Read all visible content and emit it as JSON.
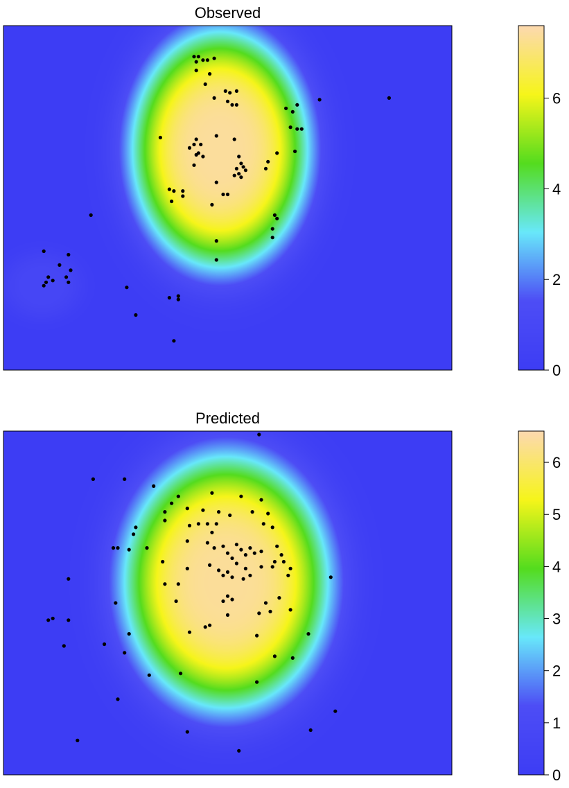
{
  "chart_data": [
    {
      "type": "heatmap",
      "title": "Observed",
      "xlabel": "",
      "ylabel": "",
      "legend": "right",
      "colorbar": {
        "min": 0,
        "max": 7.6,
        "ticks": [
          0,
          2,
          4,
          6
        ],
        "tick_labels": [
          "0",
          "2",
          "4",
          "6"
        ]
      },
      "color_stops": [
        "#3d3df4",
        "#4d4df5",
        "#68e8fa",
        "#54dc1e",
        "#f6f51a",
        "#fcd9b0"
      ],
      "hotspots": [
        {
          "cx": 0.483,
          "cy": 0.64,
          "peak": 7.4,
          "rx": 0.245,
          "ry": 0.43
        },
        {
          "cx": 0.085,
          "cy": 0.245,
          "peak": 0.9,
          "rx": 0.11,
          "ry": 0.12
        }
      ],
      "points": [
        [
          0.425,
          0.91
        ],
        [
          0.435,
          0.91
        ],
        [
          0.43,
          0.895
        ],
        [
          0.445,
          0.9
        ],
        [
          0.47,
          0.905
        ],
        [
          0.455,
          0.9
        ],
        [
          0.43,
          0.87
        ],
        [
          0.46,
          0.86
        ],
        [
          0.45,
          0.83
        ],
        [
          0.495,
          0.81
        ],
        [
          0.505,
          0.805
        ],
        [
          0.52,
          0.81
        ],
        [
          0.5,
          0.78
        ],
        [
          0.51,
          0.77
        ],
        [
          0.47,
          0.79
        ],
        [
          0.52,
          0.77
        ],
        [
          0.63,
          0.76
        ],
        [
          0.705,
          0.785
        ],
        [
          0.86,
          0.79
        ],
        [
          0.655,
          0.77
        ],
        [
          0.645,
          0.75
        ],
        [
          0.64,
          0.705
        ],
        [
          0.655,
          0.7
        ],
        [
          0.665,
          0.7
        ],
        [
          0.35,
          0.675
        ],
        [
          0.43,
          0.67
        ],
        [
          0.425,
          0.655
        ],
        [
          0.415,
          0.645
        ],
        [
          0.44,
          0.655
        ],
        [
          0.435,
          0.63
        ],
        [
          0.445,
          0.62
        ],
        [
          0.43,
          0.625
        ],
        [
          0.425,
          0.595
        ],
        [
          0.475,
          0.68
        ],
        [
          0.515,
          0.67
        ],
        [
          0.61,
          0.63
        ],
        [
          0.65,
          0.635
        ],
        [
          0.59,
          0.605
        ],
        [
          0.585,
          0.585
        ],
        [
          0.525,
          0.62
        ],
        [
          0.53,
          0.6
        ],
        [
          0.535,
          0.59
        ],
        [
          0.52,
          0.585
        ],
        [
          0.54,
          0.58
        ],
        [
          0.525,
          0.57
        ],
        [
          0.53,
          0.56
        ],
        [
          0.515,
          0.565
        ],
        [
          0.475,
          0.545
        ],
        [
          0.37,
          0.525
        ],
        [
          0.38,
          0.52
        ],
        [
          0.4,
          0.52
        ],
        [
          0.4,
          0.505
        ],
        [
          0.375,
          0.49
        ],
        [
          0.49,
          0.51
        ],
        [
          0.5,
          0.51
        ],
        [
          0.465,
          0.48
        ],
        [
          0.605,
          0.45
        ],
        [
          0.61,
          0.44
        ],
        [
          0.6,
          0.41
        ],
        [
          0.6,
          0.385
        ],
        [
          0.475,
          0.375
        ],
        [
          0.475,
          0.32
        ],
        [
          0.195,
          0.45
        ],
        [
          0.09,
          0.345
        ],
        [
          0.145,
          0.335
        ],
        [
          0.125,
          0.305
        ],
        [
          0.15,
          0.29
        ],
        [
          0.14,
          0.27
        ],
        [
          0.1,
          0.27
        ],
        [
          0.095,
          0.255
        ],
        [
          0.11,
          0.26
        ],
        [
          0.145,
          0.255
        ],
        [
          0.09,
          0.245
        ],
        [
          0.275,
          0.24
        ],
        [
          0.37,
          0.21
        ],
        [
          0.39,
          0.215
        ],
        [
          0.39,
          0.205
        ],
        [
          0.295,
          0.16
        ],
        [
          0.38,
          0.085
        ]
      ]
    },
    {
      "type": "heatmap",
      "title": "Predicted",
      "xlabel": "",
      "ylabel": "",
      "legend": "right",
      "colorbar": {
        "min": 0,
        "max": 6.6,
        "ticks": [
          0,
          1,
          2,
          3,
          4,
          5,
          6
        ],
        "tick_labels": [
          "0",
          "1",
          "2",
          "3",
          "4",
          "5",
          "6"
        ]
      },
      "color_stops": [
        "#3d3df4",
        "#4d4df5",
        "#68e8fa",
        "#54dc1e",
        "#f6f51a",
        "#fcd9b0"
      ],
      "hotspots": [
        {
          "cx": 0.497,
          "cy": 0.56,
          "peak": 6.4,
          "rx": 0.285,
          "ry": 0.46
        }
      ],
      "points": [
        [
          0.57,
          0.99
        ],
        [
          0.2,
          0.86
        ],
        [
          0.27,
          0.86
        ],
        [
          0.335,
          0.84
        ],
        [
          0.39,
          0.81
        ],
        [
          0.465,
          0.82
        ],
        [
          0.53,
          0.81
        ],
        [
          0.575,
          0.8
        ],
        [
          0.375,
          0.79
        ],
        [
          0.36,
          0.765
        ],
        [
          0.41,
          0.775
        ],
        [
          0.445,
          0.77
        ],
        [
          0.48,
          0.765
        ],
        [
          0.505,
          0.755
        ],
        [
          0.555,
          0.765
        ],
        [
          0.59,
          0.76
        ],
        [
          0.36,
          0.74
        ],
        [
          0.295,
          0.72
        ],
        [
          0.415,
          0.725
        ],
        [
          0.435,
          0.73
        ],
        [
          0.455,
          0.73
        ],
        [
          0.475,
          0.73
        ],
        [
          0.465,
          0.705
        ],
        [
          0.58,
          0.73
        ],
        [
          0.6,
          0.72
        ],
        [
          0.29,
          0.7
        ],
        [
          0.245,
          0.66
        ],
        [
          0.255,
          0.66
        ],
        [
          0.28,
          0.655
        ],
        [
          0.32,
          0.66
        ],
        [
          0.41,
          0.68
        ],
        [
          0.455,
          0.675
        ],
        [
          0.47,
          0.66
        ],
        [
          0.49,
          0.665
        ],
        [
          0.52,
          0.67
        ],
        [
          0.5,
          0.645
        ],
        [
          0.51,
          0.63
        ],
        [
          0.53,
          0.655
        ],
        [
          0.54,
          0.64
        ],
        [
          0.55,
          0.66
        ],
        [
          0.56,
          0.645
        ],
        [
          0.575,
          0.65
        ],
        [
          0.61,
          0.665
        ],
        [
          0.62,
          0.64
        ],
        [
          0.605,
          0.62
        ],
        [
          0.52,
          0.615
        ],
        [
          0.54,
          0.6
        ],
        [
          0.575,
          0.605
        ],
        [
          0.6,
          0.605
        ],
        [
          0.625,
          0.62
        ],
        [
          0.64,
          0.6
        ],
        [
          0.5,
          0.59
        ],
        [
          0.51,
          0.575
        ],
        [
          0.535,
          0.57
        ],
        [
          0.55,
          0.58
        ],
        [
          0.355,
          0.62
        ],
        [
          0.41,
          0.6
        ],
        [
          0.46,
          0.61
        ],
        [
          0.48,
          0.595
        ],
        [
          0.49,
          0.58
        ],
        [
          0.635,
          0.58
        ],
        [
          0.73,
          0.575
        ],
        [
          0.145,
          0.57
        ],
        [
          0.36,
          0.555
        ],
        [
          0.39,
          0.555
        ],
        [
          0.5,
          0.52
        ],
        [
          0.51,
          0.51
        ],
        [
          0.49,
          0.505
        ],
        [
          0.615,
          0.515
        ],
        [
          0.385,
          0.505
        ],
        [
          0.25,
          0.5
        ],
        [
          0.585,
          0.5
        ],
        [
          0.1,
          0.45
        ],
        [
          0.11,
          0.455
        ],
        [
          0.145,
          0.45
        ],
        [
          0.64,
          0.48
        ],
        [
          0.5,
          0.465
        ],
        [
          0.57,
          0.47
        ],
        [
          0.595,
          0.475
        ],
        [
          0.46,
          0.435
        ],
        [
          0.45,
          0.43
        ],
        [
          0.28,
          0.41
        ],
        [
          0.415,
          0.415
        ],
        [
          0.68,
          0.41
        ],
        [
          0.565,
          0.405
        ],
        [
          0.225,
          0.38
        ],
        [
          0.135,
          0.375
        ],
        [
          0.27,
          0.355
        ],
        [
          0.605,
          0.345
        ],
        [
          0.645,
          0.34
        ],
        [
          0.325,
          0.29
        ],
        [
          0.395,
          0.295
        ],
        [
          0.565,
          0.27
        ],
        [
          0.255,
          0.22
        ],
        [
          0.74,
          0.185
        ],
        [
          0.41,
          0.125
        ],
        [
          0.685,
          0.13
        ],
        [
          0.165,
          0.1
        ],
        [
          0.525,
          0.07
        ]
      ]
    }
  ]
}
